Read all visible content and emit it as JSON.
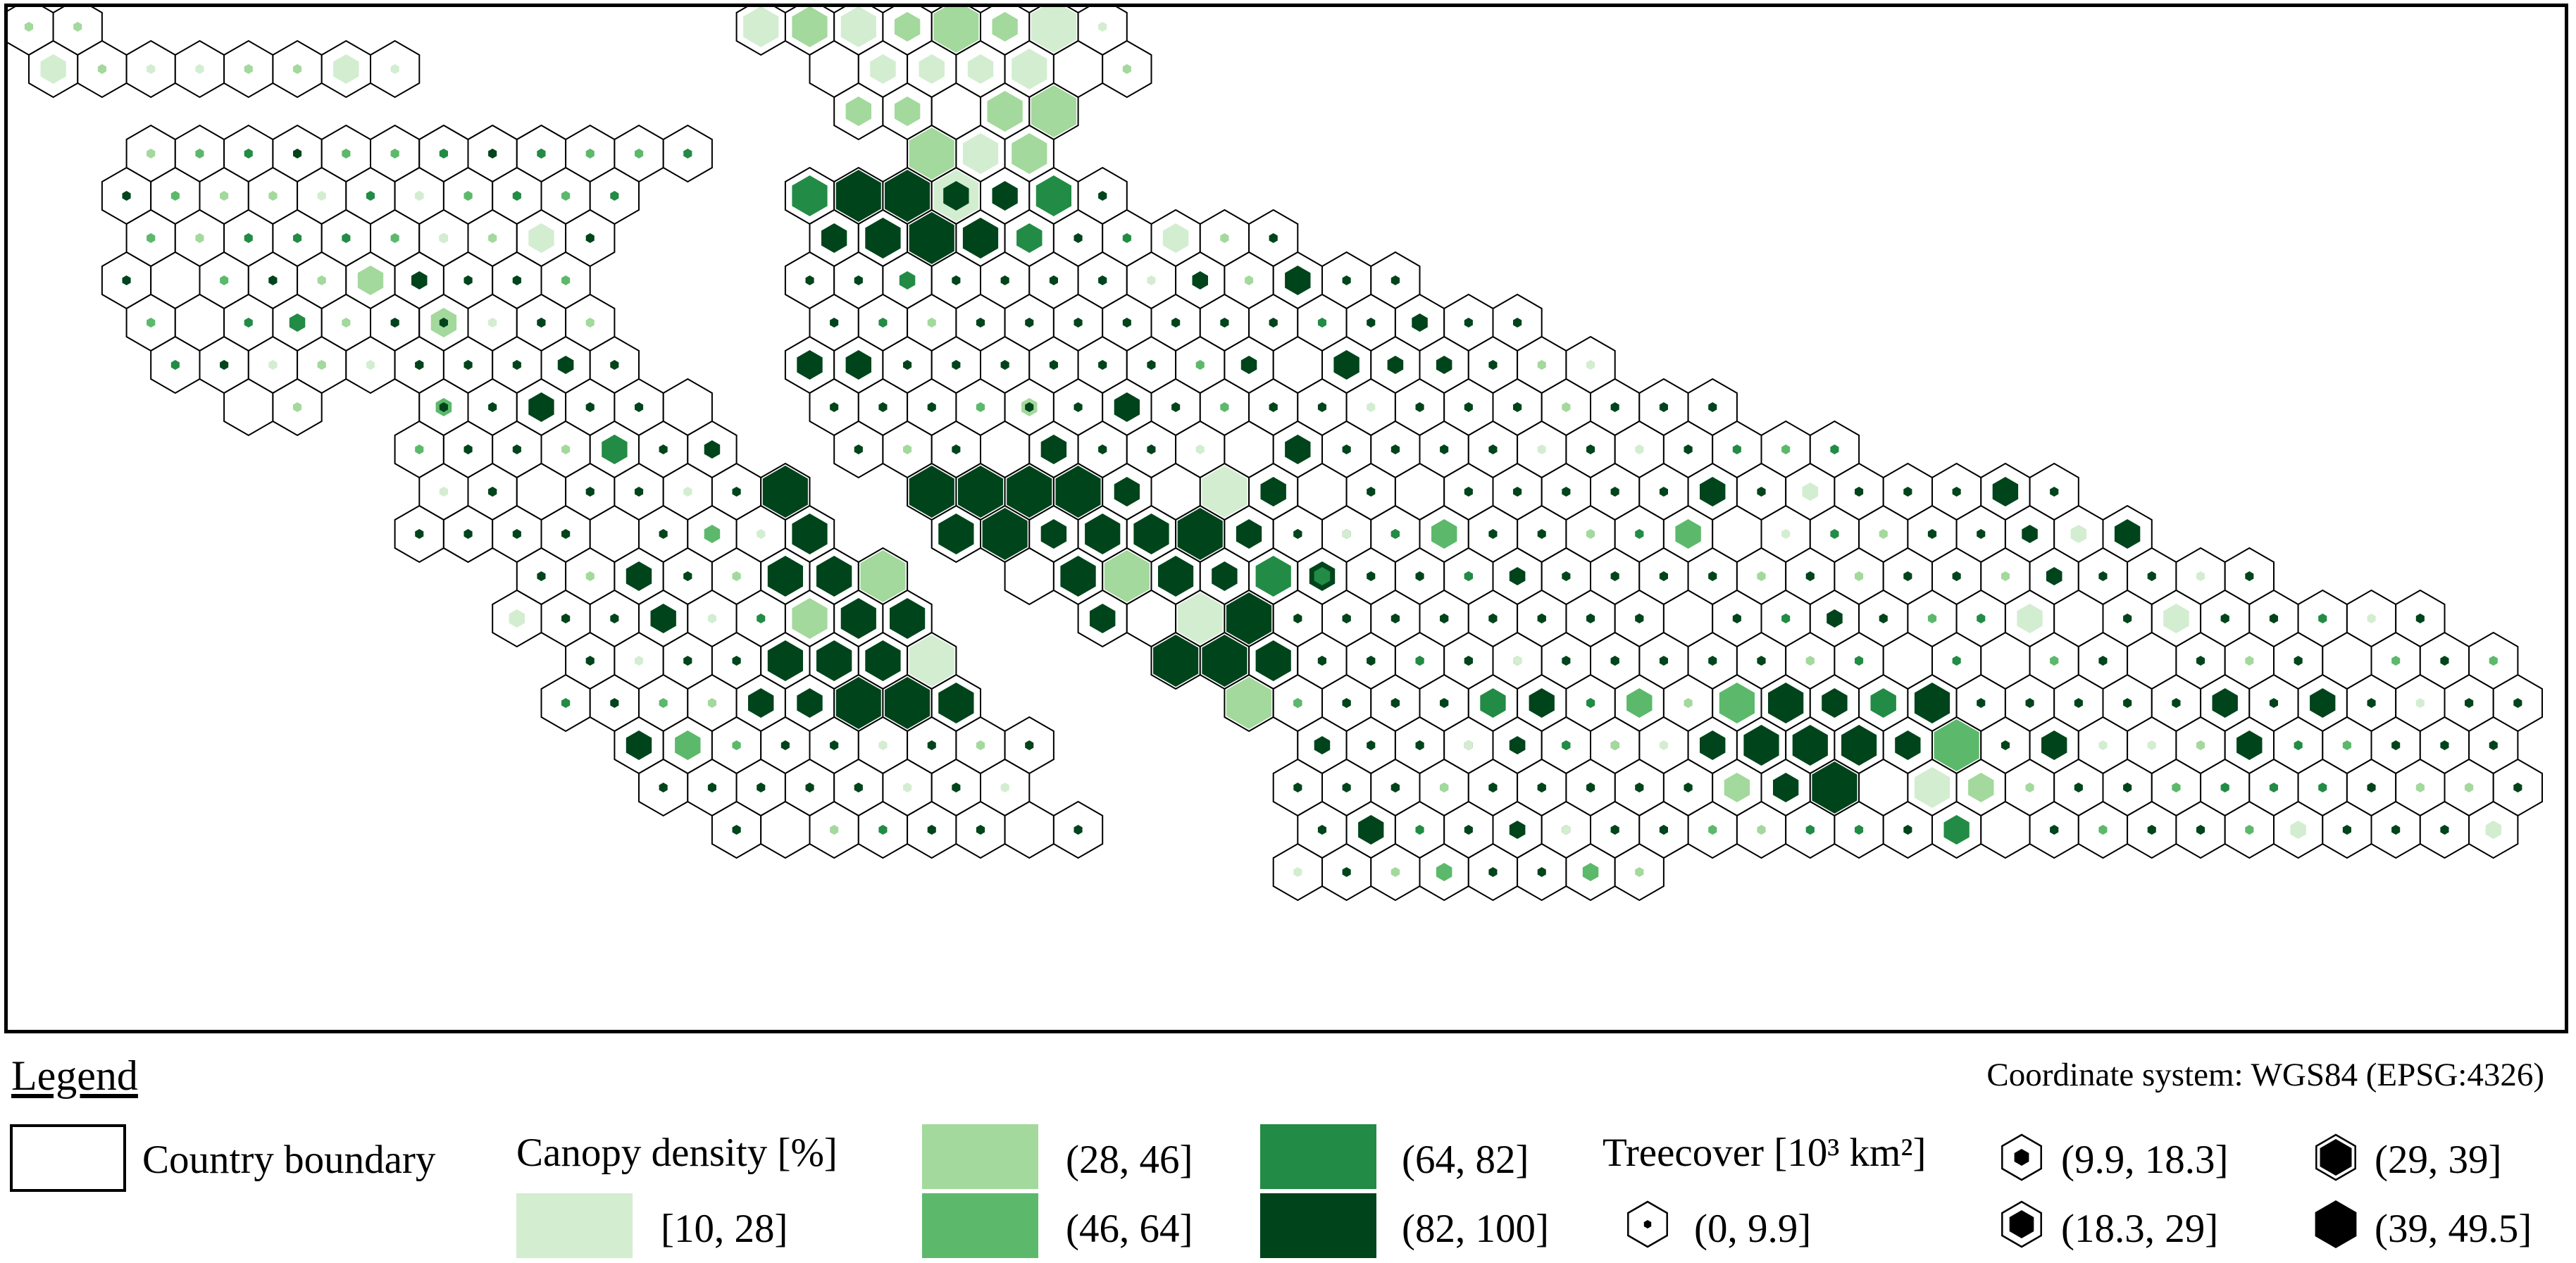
{
  "legend": {
    "heading": "Legend",
    "coordinate_system": "Coordinate system: WGS84 (EPSG:4326)",
    "boundary_label": "Country boundary",
    "canopy": {
      "title": "Canopy density [%]",
      "classes": [
        {
          "label": "[10, 28]",
          "color": "#d3edd0"
        },
        {
          "label": "(28, 46]",
          "color": "#a3d99c"
        },
        {
          "label": "(46, 64]",
          "color": "#5cb96b"
        },
        {
          "label": "(64, 82]",
          "color": "#228b45"
        },
        {
          "label": "(82, 100]",
          "color": "#00441b"
        }
      ]
    },
    "treecover": {
      "title": "Treecover [10³ km²]",
      "classes": [
        {
          "label": "(0, 9.9]"
        },
        {
          "label": "(9.9, 18.3]"
        },
        {
          "label": "(18.3, 29]"
        },
        {
          "label": "(29, 39]"
        },
        {
          "label": "(39, 49.5]"
        }
      ]
    }
  }
}
